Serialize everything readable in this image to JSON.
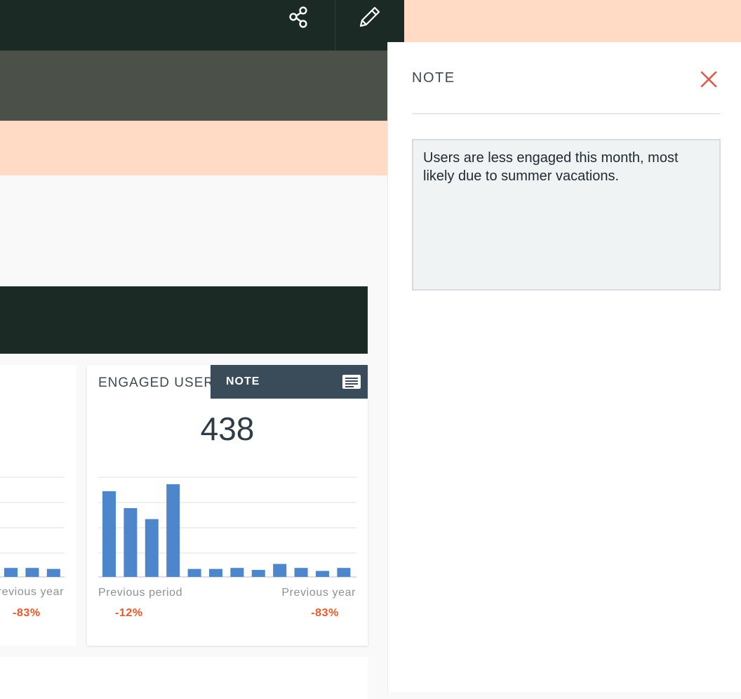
{
  "toolbar": {
    "share_icon": "share-icon",
    "edit_icon": "pencil-icon"
  },
  "widgets": {
    "left_card": {
      "previous_year_label": "Previous year",
      "previous_year_value": "-83%",
      "chart_data": {
        "type": "bar",
        "values": [
          9,
          9,
          8
        ],
        "ylim": [
          0,
          100
        ]
      }
    },
    "engaged_users": {
      "title": "ENGAGED USERS",
      "value": "438",
      "note_label": "NOTE",
      "note_icon": "note-lines-icon",
      "previous_period_label": "Previous period",
      "previous_period_value": "-12%",
      "previous_year_label": "Previous year",
      "previous_year_value": "-83%",
      "chart_data": {
        "type": "bar",
        "values": [
          86,
          69,
          58,
          93,
          8,
          8,
          9,
          7,
          13,
          9,
          6,
          9
        ],
        "ylim": [
          0,
          100
        ],
        "grid": true
      }
    }
  },
  "note_panel": {
    "title": "NOTE",
    "close_icon": "close-icon",
    "text": "Users are less engaged this month, most likely due to summer vacations."
  },
  "colors": {
    "bar": "#4e86cb",
    "negative": "#e55a2a",
    "accent_peach": "#ffdac5",
    "dark_header": "#1b2a25"
  }
}
